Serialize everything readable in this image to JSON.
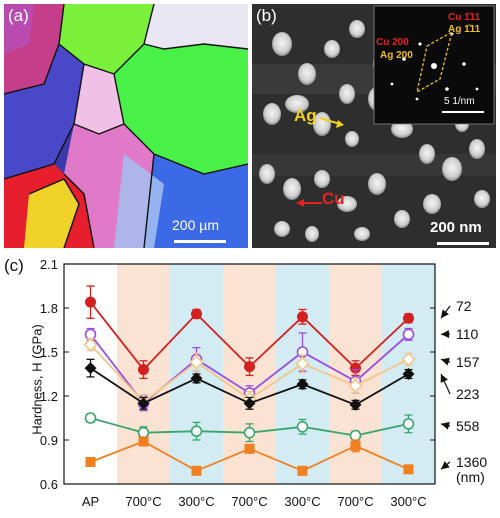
{
  "panel_a": {
    "label": "(a)",
    "scale_bar": "200 µm"
  },
  "panel_b": {
    "label": "(b)",
    "scale_bar": "200 nm",
    "ag_label": "Ag",
    "cu_label": "Cu",
    "inset": {
      "cu200": "Cu 200",
      "ag200": "Ag 200",
      "cu111": "Cu 1̄11",
      "ag111": "Ag 1̄11",
      "scale": "5 1/nm"
    }
  },
  "panel_c": {
    "label": "(c)",
    "ylabel": "Hardness, H (GPa)"
  },
  "chart_data": {
    "type": "line",
    "categories": [
      "AP",
      "700°C",
      "300°C",
      "700°C",
      "300°C",
      "700°C",
      "300°C"
    ],
    "ylim": [
      0.6,
      2.1
    ],
    "yticks": [
      "0.6",
      "0.9",
      "1.2",
      "1.5",
      "1.8",
      "2.1"
    ],
    "series": [
      {
        "name": "72",
        "color": "#d32020",
        "marker": "circle-filled",
        "values": [
          1.84,
          1.38,
          1.76,
          1.4,
          1.74,
          1.39,
          1.73
        ],
        "err": [
          0.11,
          0.06,
          0.03,
          0.06,
          0.05,
          0.05,
          0.03
        ]
      },
      {
        "name": "110",
        "color": "#9b4de0",
        "marker": "circle-open",
        "values": [
          1.62,
          1.15,
          1.45,
          1.22,
          1.5,
          1.3,
          1.62
        ],
        "err": [
          0.04,
          0.05,
          0.08,
          0.05,
          0.13,
          0.08,
          0.04
        ]
      },
      {
        "name": "157",
        "color": "#f0c68a",
        "marker": "diamond-open",
        "values": [
          1.55,
          1.16,
          1.43,
          1.18,
          1.42,
          1.27,
          1.45
        ],
        "err": [
          0.04,
          0.05,
          0.06,
          0.05,
          0.06,
          0.05,
          0.04
        ]
      },
      {
        "name": "223",
        "color": "#111111",
        "marker": "diamond-filled",
        "values": [
          1.39,
          1.15,
          1.32,
          1.15,
          1.28,
          1.14,
          1.35
        ],
        "err": [
          0.06,
          0.04,
          0.03,
          0.04,
          0.03,
          0.03,
          0.03
        ]
      },
      {
        "name": "558",
        "color": "#3aa56a",
        "marker": "circle-open",
        "values": [
          1.05,
          0.95,
          0.96,
          0.95,
          0.99,
          0.93,
          1.01
        ],
        "err": [
          0.03,
          0.04,
          0.06,
          0.06,
          0.05,
          0.03,
          0.06
        ]
      },
      {
        "name": "1360",
        "color": "#f07f20",
        "marker": "square-filled",
        "values": [
          0.75,
          0.89,
          0.69,
          0.84,
          0.69,
          0.86,
          0.7
        ],
        "err": [
          0.0,
          0.03,
          0.0,
          0.0,
          0.0,
          0.04,
          0.0
        ]
      }
    ],
    "unit_label": "(nm)",
    "bands": [
      {
        "from": 1,
        "color": "#fbe3d4"
      },
      {
        "from": 2,
        "color": "#d3ecf3"
      },
      {
        "from": 3,
        "color": "#fbe3d4"
      },
      {
        "from": 4,
        "color": "#d3ecf3"
      },
      {
        "from": 5,
        "color": "#fbe3d4"
      },
      {
        "from": 6,
        "color": "#d3ecf3"
      }
    ]
  }
}
